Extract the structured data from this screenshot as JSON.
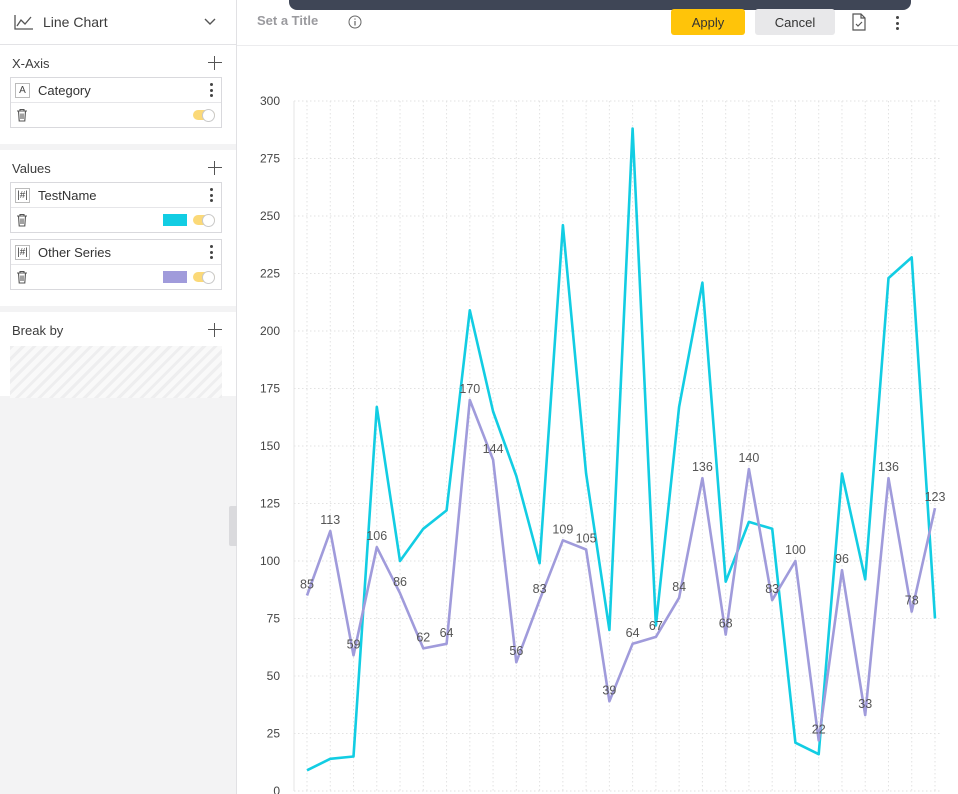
{
  "sidebar": {
    "chart_type": {
      "label": "Line Chart",
      "icon": "line-chart-icon"
    },
    "xaxis": {
      "title": "X-Axis",
      "fields": [
        {
          "type_badge": "A",
          "name": "Category"
        }
      ]
    },
    "values": {
      "title": "Values",
      "fields": [
        {
          "type_badge": "|#|",
          "name": "TestName",
          "color": "#12cde3"
        },
        {
          "type_badge": "|#|",
          "name": "Other Series",
          "color": "#a09bdb"
        }
      ]
    },
    "breakby": {
      "title": "Break by"
    }
  },
  "toolbar": {
    "title_placeholder": "Set a Title",
    "apply_label": "Apply",
    "cancel_label": "Cancel",
    "accent_color": "#ffc409"
  },
  "chart_data": {
    "type": "line",
    "ylim": [
      0,
      300
    ],
    "yticks": [
      0,
      25,
      50,
      75,
      100,
      125,
      150,
      175,
      200,
      225,
      250,
      275,
      300
    ],
    "grid": true,
    "series": [
      {
        "name": "TestName",
        "color": "#12cde3",
        "show_labels": false,
        "values": [
          9,
          14,
          15,
          167,
          100,
          114,
          122,
          209,
          165,
          137,
          99,
          246,
          138,
          70,
          288,
          72,
          167,
          221,
          91,
          117,
          114,
          21,
          16,
          138,
          92,
          223,
          232,
          75
        ]
      },
      {
        "name": "Other Series",
        "color": "#a09bdb",
        "show_labels": true,
        "values": [
          85,
          113,
          59,
          106,
          86,
          62,
          64,
          170,
          144,
          56,
          83,
          109,
          105,
          39,
          64,
          67,
          84,
          136,
          68,
          140,
          83,
          100,
          22,
          96,
          33,
          136,
          78,
          123
        ]
      }
    ]
  }
}
